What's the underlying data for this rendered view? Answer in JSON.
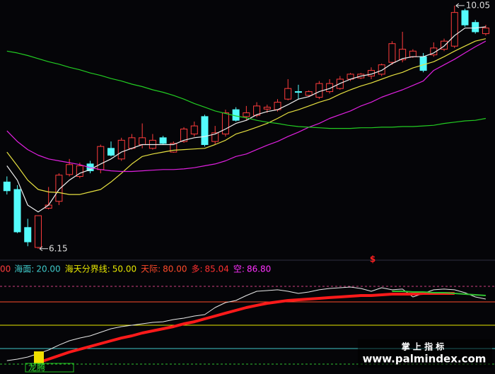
{
  "chart_data": [
    {
      "type": "candlestick",
      "ylim": [
        6.0,
        10.14
      ],
      "up_color": "#ff3c3c",
      "down_color": "#54fcfc",
      "open": [
        7.22,
        7.1,
        6.49,
        6.17,
        6.8,
        6.91,
        7.34,
        7.31,
        7.51,
        7.42,
        7.76,
        7.59,
        7.76,
        7.82,
        7.76,
        7.93,
        7.7,
        7.87,
        7.99,
        8.27,
        7.87,
        7.99,
        8.38,
        8.27,
        8.29,
        8.39,
        8.38,
        8.55,
        8.67,
        8.61,
        8.58,
        8.67,
        8.72,
        8.87,
        8.89,
        8.92,
        8.95,
        9.14,
        9.18,
        9.23,
        9.23,
        9.26,
        9.35,
        9.4,
        9.97,
        9.78,
        9.6
      ],
      "high": [
        7.31,
        7.17,
        6.63,
        6.68,
        7.14,
        7.36,
        7.59,
        7.53,
        7.56,
        7.82,
        7.87,
        7.93,
        7.99,
        8.16,
        7.99,
        7.96,
        7.87,
        8.1,
        8.19,
        8.3,
        8.12,
        8.38,
        8.42,
        8.44,
        8.5,
        8.46,
        8.55,
        8.87,
        8.78,
        8.69,
        8.84,
        8.87,
        8.92,
        8.97,
        8.97,
        9.06,
        9.12,
        9.48,
        9.63,
        9.35,
        9.29,
        9.46,
        9.52,
        10.05,
        10.0,
        9.82,
        9.74
      ],
      "low": [
        7.02,
        6.4,
        6.19,
        6.15,
        6.78,
        6.85,
        7.31,
        7.28,
        7.36,
        7.36,
        7.63,
        7.56,
        7.74,
        7.76,
        7.74,
        7.82,
        7.69,
        7.85,
        7.95,
        7.79,
        7.82,
        7.95,
        8.19,
        8.21,
        8.26,
        8.33,
        8.35,
        8.53,
        8.55,
        8.59,
        8.55,
        8.64,
        8.7,
        8.84,
        8.87,
        8.87,
        8.92,
        9.1,
        9.14,
        9.21,
        8.98,
        9.23,
        9.32,
        9.37,
        9.71,
        9.6,
        9.57
      ],
      "close": [
        7.08,
        6.42,
        6.26,
        6.68,
        6.85,
        7.33,
        7.5,
        7.48,
        7.4,
        7.79,
        7.65,
        7.89,
        7.93,
        7.93,
        7.89,
        7.84,
        7.84,
        8.07,
        8.12,
        7.82,
        8.01,
        8.33,
        8.21,
        8.33,
        8.44,
        8.42,
        8.5,
        8.72,
        8.66,
        8.67,
        8.8,
        8.8,
        8.87,
        8.95,
        8.95,
        9.01,
        9.1,
        9.44,
        9.35,
        9.32,
        9.01,
        9.37,
        9.48,
        9.94,
        9.74,
        9.63,
        9.69
      ],
      "series": [
        {
          "color": "#f0f0f0",
          "values": [
            7.48,
            7.25,
            6.85,
            6.74,
            6.85,
            7.1,
            7.25,
            7.36,
            7.42,
            7.51,
            7.59,
            7.7,
            7.76,
            7.82,
            7.82,
            7.82,
            7.82,
            7.89,
            7.93,
            7.95,
            7.99,
            8.07,
            8.16,
            8.21,
            8.3,
            8.35,
            8.38,
            8.46,
            8.55,
            8.59,
            8.67,
            8.72,
            8.8,
            8.87,
            8.92,
            8.95,
            9.01,
            9.12,
            9.2,
            9.23,
            9.23,
            9.29,
            9.4,
            9.57,
            9.69,
            9.69,
            9.71
          ]
        },
        {
          "color": "#e6e040",
          "values": [
            7.7,
            7.48,
            7.25,
            7.1,
            7.06,
            7.05,
            7.02,
            7.02,
            7.06,
            7.1,
            7.22,
            7.36,
            7.51,
            7.63,
            7.67,
            7.7,
            7.73,
            7.74,
            7.75,
            7.76,
            7.82,
            7.89,
            7.99,
            8.04,
            8.1,
            8.16,
            8.24,
            8.33,
            8.38,
            8.44,
            8.5,
            8.55,
            8.63,
            8.7,
            8.76,
            8.81,
            8.87,
            8.93,
            8.98,
            9.05,
            9.1,
            9.15,
            9.23,
            9.32,
            9.4,
            9.48,
            9.52
          ]
        },
        {
          "color": "#e020e0",
          "values": [
            8.04,
            7.87,
            7.74,
            7.65,
            7.59,
            7.56,
            7.53,
            7.5,
            7.45,
            7.42,
            7.4,
            7.39,
            7.39,
            7.4,
            7.41,
            7.42,
            7.42,
            7.43,
            7.45,
            7.48,
            7.51,
            7.56,
            7.63,
            7.67,
            7.74,
            7.81,
            7.87,
            7.95,
            8.02,
            8.1,
            8.16,
            8.24,
            8.3,
            8.36,
            8.44,
            8.5,
            8.58,
            8.64,
            8.7,
            8.77,
            8.84,
            9.01,
            9.1,
            9.19,
            9.29,
            9.39,
            9.48
          ]
        },
        {
          "color": "#22cc22",
          "values": [
            9.32,
            9.29,
            9.25,
            9.2,
            9.15,
            9.11,
            9.06,
            9.02,
            8.97,
            8.93,
            8.88,
            8.84,
            8.79,
            8.75,
            8.7,
            8.66,
            8.61,
            8.55,
            8.48,
            8.42,
            8.36,
            8.32,
            8.28,
            8.25,
            8.21,
            8.18,
            8.16,
            8.13,
            8.11,
            8.1,
            8.09,
            8.08,
            8.08,
            8.08,
            8.09,
            8.09,
            8.1,
            8.1,
            8.11,
            8.11,
            8.12,
            8.13,
            8.16,
            8.18,
            8.2,
            8.21,
            8.24
          ]
        }
      ],
      "high_label": 10.05,
      "low_label": 6.15,
      "marker": "$"
    },
    {
      "type": "line",
      "ylim": [
        -12.7,
        111.8
      ],
      "clipped_label": "00",
      "clipped_color": "#ff3c3c",
      "legend": [
        {
          "name": "海面:",
          "label": "20.00",
          "value": 20,
          "color": "#3ec8c8",
          "line": true
        },
        {
          "name": "海天分界线:",
          "label": "50.00",
          "value": 50,
          "color": "#e6e600",
          "line": true
        },
        {
          "name": "天际:",
          "label": "80.00",
          "value": 80,
          "color": "#ff4a2a",
          "line": true
        },
        {
          "name": "多:",
          "label": "85.04",
          "value": 85.04,
          "color": "#ff3030",
          "line": false
        },
        {
          "name": "空:",
          "label": "86.80",
          "value": 86.8,
          "color": "#ff30ff",
          "line": false
        }
      ],
      "guides": [
        {
          "value": 100,
          "color": "#d04080",
          "dashed": true
        },
        {
          "value": 0,
          "color": "#30c030",
          "dashed": true
        }
      ],
      "series": [
        {
          "color": "#e8e8e8",
          "width": 1,
          "values": [
            4.5,
            6.4,
            9.1,
            13.6,
            18.2,
            24.5,
            30.0,
            33.6,
            36.4,
            40.9,
            45.5,
            48.2,
            50.0,
            51.8,
            53.6,
            54.5,
            57.3,
            59.1,
            61.8,
            63.6,
            72.7,
            79.1,
            81.8,
            88.2,
            93.6,
            94.5,
            95.5,
            93.6,
            90.9,
            92.7,
            95.5,
            97.3,
            98.2,
            99.1,
            97.3,
            93.6,
            98.2,
            95.5,
            96.4,
            86.4,
            90.9,
            95.5,
            96.4,
            95.5,
            91.8,
            86.4,
            83.6
          ]
        },
        {
          "color": "#ff1a1a",
          "width": 4,
          "values": [
            null,
            null,
            null,
            1.8,
            6.4,
            10.9,
            15.5,
            19.1,
            22.7,
            26.4,
            30.0,
            33.6,
            36.4,
            40.0,
            42.7,
            45.5,
            48.2,
            51.8,
            54.5,
            58.2,
            61.8,
            65.5,
            69.1,
            72.7,
            75.5,
            78.2,
            80.0,
            81.8,
            82.7,
            83.6,
            84.5,
            85.5,
            86.4,
            87.3,
            88.2,
            88.2,
            89.1,
            90.0,
            90.0,
            90.0,
            90.9,
            90.9,
            90.9,
            90.9,
            null,
            null,
            null
          ]
        },
        {
          "color": "#30c030",
          "width": 2,
          "values": [
            null,
            null,
            null,
            null,
            null,
            null,
            null,
            null,
            null,
            null,
            null,
            null,
            null,
            null,
            null,
            null,
            null,
            null,
            null,
            null,
            null,
            null,
            null,
            null,
            null,
            null,
            null,
            null,
            null,
            null,
            null,
            null,
            null,
            null,
            null,
            null,
            null,
            93.6,
            93.6,
            92.7,
            92.7,
            91.8,
            91.8,
            90.9,
            90.0,
            89.1,
            88.2
          ]
        }
      ],
      "signal_label": "龙腾"
    }
  ],
  "watermark": {
    "title": "掌 上 指 标",
    "url": "www.palmindex.com"
  }
}
